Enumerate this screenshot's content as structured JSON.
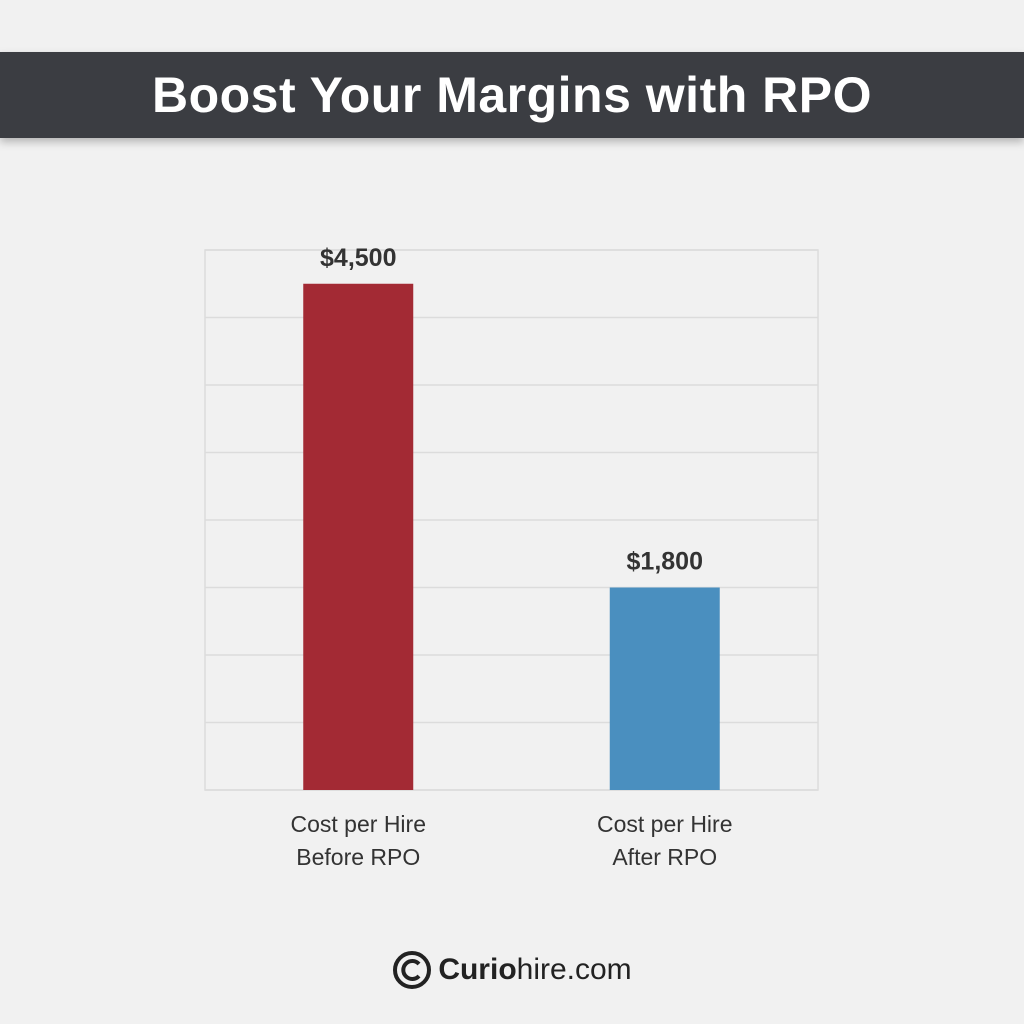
{
  "title": "Boost Your Margins with RPO",
  "chart_data": {
    "type": "bar",
    "categories": [
      "Cost per Hire\nBefore RPO",
      "Cost per Hire\nAfter RPO"
    ],
    "values": [
      4500,
      1800
    ],
    "value_labels": [
      "$4,500",
      "$1,800"
    ],
    "colors": [
      "#a32a34",
      "#4a8fbf"
    ],
    "ylim": [
      0,
      4800
    ],
    "yticks": [
      0,
      600,
      1200,
      1800,
      2400,
      3000,
      3600,
      4200,
      4800
    ],
    "grid": true
  },
  "footer": {
    "brand_bold": "Curio",
    "brand_rest": "hire.com"
  }
}
